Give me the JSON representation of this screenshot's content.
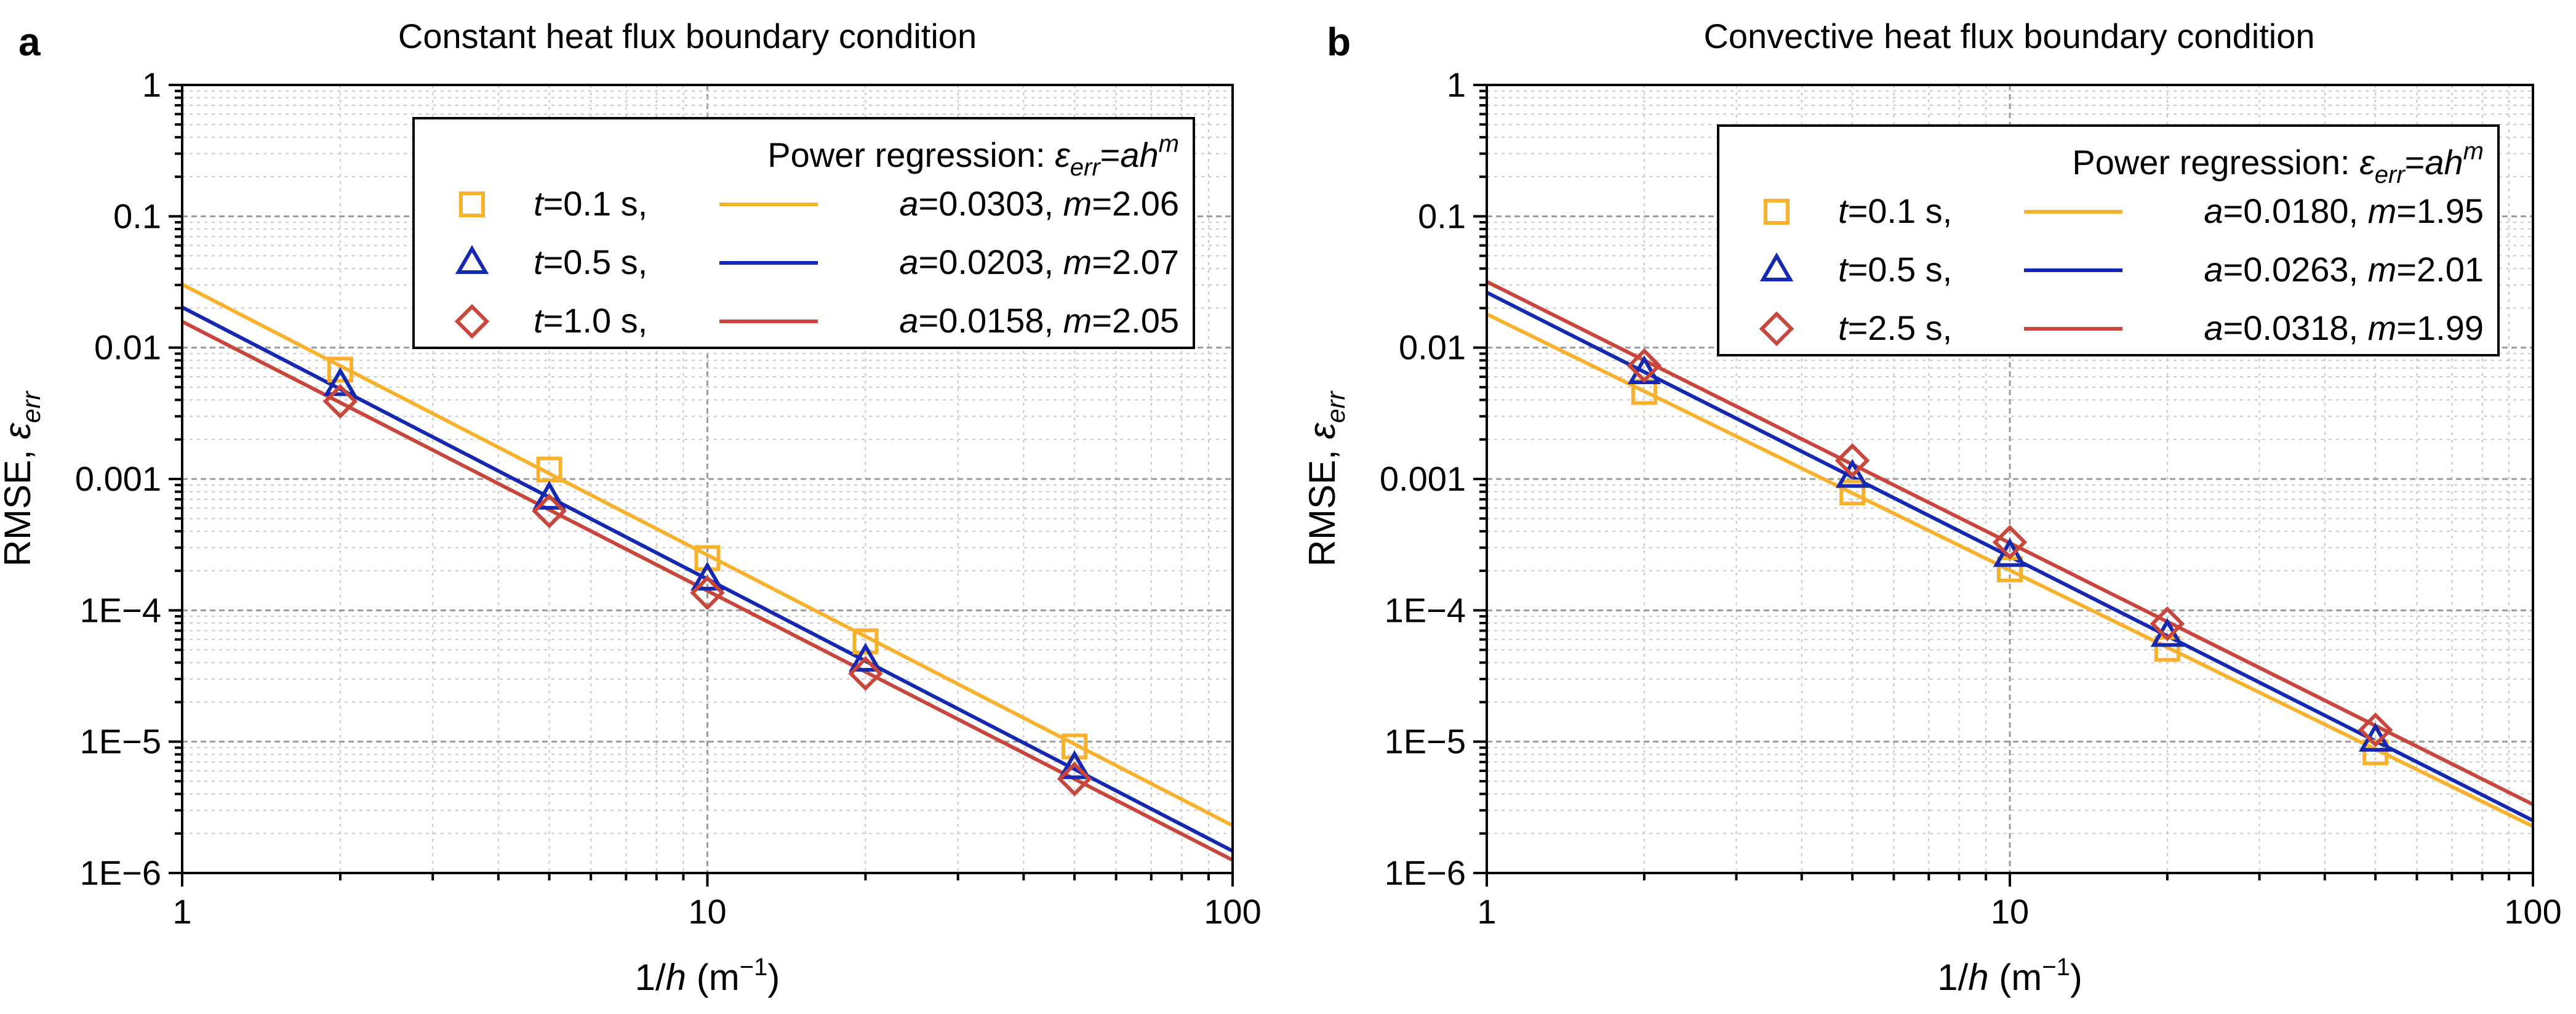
{
  "chart_data": [
    {
      "type": "scatter",
      "panel_label": "a",
      "title": "Constant heat flux boundary condition",
      "xlabel_parts": [
        "1/",
        "h",
        " (m",
        "−1",
        ")"
      ],
      "ylabel_parts": [
        "RMSE, ",
        "ε",
        "err"
      ],
      "xscale": "log",
      "yscale": "log",
      "xlim": [
        1,
        100
      ],
      "ylim": [
        1e-06,
        1
      ],
      "xticks": [
        1,
        10,
        100
      ],
      "xtick_labels": [
        "1",
        "10",
        "100"
      ],
      "yticks": [
        1e-06,
        1e-05,
        0.0001,
        0.001,
        0.01,
        0.1,
        1
      ],
      "ytick_labels": [
        "1E−6",
        "1E−5",
        "1E−4",
        "0.001",
        "0.01",
        "0.1",
        "1"
      ],
      "grid": true,
      "legend_position": "top-right",
      "legend_title_parts": [
        "Power regression: ",
        "ε",
        "err",
        "=",
        "ah",
        "m"
      ],
      "series": [
        {
          "name": "t=0.1 s,",
          "time_label": "0.1 s,",
          "color": "#F7B12C",
          "marker": "square",
          "x": [
            2,
            5,
            10,
            20,
            50
          ],
          "y": [
            0.0068,
            0.00118,
            0.00025,
            5.8e-05,
            9.2e-06
          ],
          "fit": {
            "a_text": "0.0303",
            "m_text": "2.06",
            "a": 0.0303,
            "m": 2.06
          }
        },
        {
          "name": "t=0.5 s,",
          "time_label": "0.5 s,",
          "color": "#1428B0",
          "marker": "triangle",
          "x": [
            2,
            5,
            10,
            20,
            50
          ],
          "y": [
            0.0052,
            0.00071,
            0.000172,
            4.15e-05,
            6.3e-06
          ],
          "fit": {
            "a_text": "0.0203",
            "m_text": "2.07",
            "a": 0.0203,
            "m": 2.07
          }
        },
        {
          "name": "t=1.0 s,",
          "time_label": "1.0 s,",
          "color": "#C8463C",
          "marker": "diamond",
          "x": [
            2,
            5,
            10,
            20,
            50
          ],
          "y": [
            0.0039,
            0.00057,
            0.000136,
            3.3e-05,
            5.2e-06
          ],
          "fit": {
            "a_text": "0.0158",
            "m_text": "2.05",
            "a": 0.0158,
            "m": 2.05
          }
        }
      ]
    },
    {
      "type": "scatter",
      "panel_label": "b",
      "title": "Convective heat flux boundary condition",
      "xlabel_parts": [
        "1/",
        "h",
        " (m",
        "−1",
        ")"
      ],
      "ylabel_parts": [
        "RMSE, ",
        "ε",
        "err"
      ],
      "xscale": "log",
      "yscale": "log",
      "xlim": [
        1,
        100
      ],
      "ylim": [
        1e-06,
        1
      ],
      "xticks": [
        1,
        10,
        100
      ],
      "xtick_labels": [
        "1",
        "10",
        "100"
      ],
      "yticks": [
        1e-06,
        1e-05,
        0.0001,
        0.001,
        0.01,
        0.1,
        1
      ],
      "ytick_labels": [
        "1E−6",
        "1E−5",
        "1E−4",
        "0.001",
        "0.01",
        "0.1",
        "1"
      ],
      "grid": true,
      "legend_position": "top-right",
      "legend_title_parts": [
        "Power regression: ",
        "ε",
        "err",
        "=",
        "ah",
        "m"
      ],
      "series": [
        {
          "name": "t=0.1 s,",
          "time_label": "0.1 s,",
          "color": "#F7B12C",
          "marker": "square",
          "x": [
            2,
            5,
            10,
            20,
            50
          ],
          "y": [
            0.0046,
            0.00079,
            0.000205,
            5.1e-05,
            8.3e-06
          ],
          "fit": {
            "a_text": "0.0180",
            "m_text": "1.95",
            "a": 0.018,
            "m": 1.95
          }
        },
        {
          "name": "t=0.5 s,",
          "time_label": "0.5 s,",
          "color": "#1428B0",
          "marker": "triangle",
          "x": [
            2,
            5,
            10,
            20,
            50
          ],
          "y": [
            0.0064,
            0.00104,
            0.00026,
            6.4e-05,
            1.02e-05
          ],
          "fit": {
            "a_text": "0.0263",
            "m_text": "2.01",
            "a": 0.0263,
            "m": 2.01
          }
        },
        {
          "name": "t=2.5 s,",
          "time_label": "2.5 s,",
          "color": "#C8463C",
          "marker": "diamond",
          "x": [
            2,
            5,
            10,
            20,
            50
          ],
          "y": [
            0.0073,
            0.00138,
            0.00033,
            7.9e-05,
            1.23e-05
          ],
          "fit": {
            "a_text": "0.0318",
            "m_text": "1.99",
            "a": 0.0318,
            "m": 1.99
          }
        }
      ]
    }
  ]
}
